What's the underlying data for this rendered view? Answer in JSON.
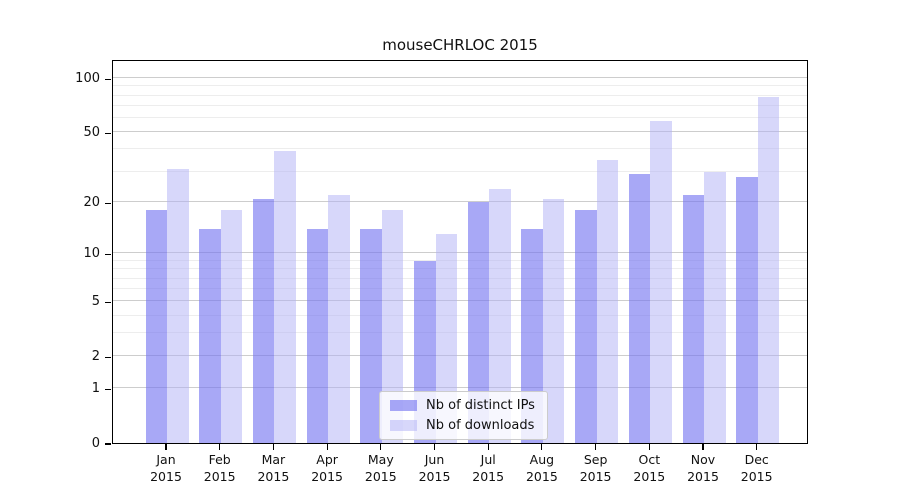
{
  "figure": {
    "title": "mouseCHRLOC 2015"
  },
  "chart_data": {
    "type": "bar",
    "title": "mouseCHRLOC 2015",
    "categories": [
      "Jan",
      "Feb",
      "Mar",
      "Apr",
      "May",
      "Jun",
      "Jul",
      "Aug",
      "Sep",
      "Oct",
      "Nov",
      "Dec"
    ],
    "year_label": "2015",
    "series": [
      {
        "name": "Nb of distinct IPs",
        "color": "#a8a8f6",
        "rgba": "rgba(115,115,240,0.62)",
        "values": [
          18,
          14,
          21,
          14,
          14,
          9,
          20,
          14,
          18,
          29,
          22,
          28
        ]
      },
      {
        "name": "Nb of downloads",
        "color": "#d7d7fa",
        "rgba": "rgba(175,175,245,0.5)",
        "values": [
          31,
          18,
          39,
          22,
          18,
          13,
          24,
          21,
          35,
          58,
          30,
          79
        ]
      }
    ],
    "y_axis": {
      "scale": "log1p",
      "tick_values": [
        0,
        1,
        2,
        5,
        10,
        20,
        50,
        100
      ],
      "tick_labels": [
        "0",
        "1",
        "2",
        "5",
        "10",
        "20",
        "50",
        "100"
      ],
      "minor_gridlines": [
        3,
        4,
        6,
        7,
        8,
        9,
        30,
        40,
        60,
        70,
        80,
        90
      ],
      "ylim": [
        0,
        128
      ]
    },
    "xlabel": "",
    "ylabel": "",
    "grid": true,
    "legend_position": "bottom-center"
  }
}
